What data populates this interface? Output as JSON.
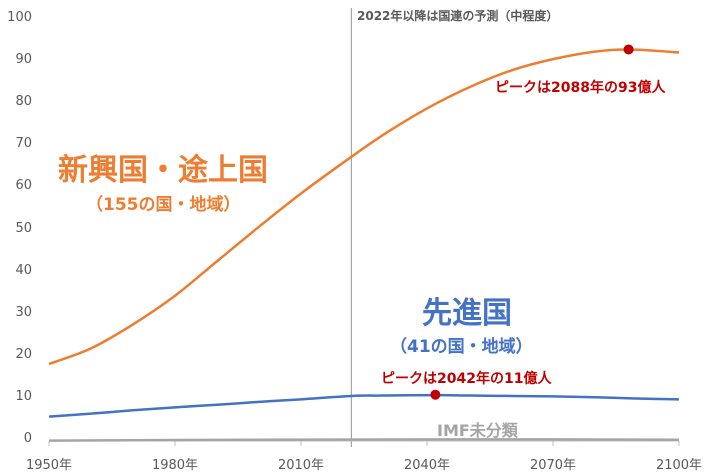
{
  "chart_data": {
    "type": "line",
    "title": "",
    "xlabel": "",
    "ylabel": "",
    "ylim": [
      0,
      100
    ],
    "xlim": [
      1950,
      2100
    ],
    "y_ticks": [
      "0",
      "10",
      "20",
      "30",
      "40",
      "50",
      "60",
      "70",
      "80",
      "90",
      "100"
    ],
    "x_ticks": [
      "1950年",
      "1980年",
      "2010年",
      "2040年",
      "2070年",
      "2100年"
    ],
    "grid": false,
    "projection_line": {
      "year": 2022,
      "label": "2022年以降は国連の予測（中程度）"
    },
    "series": [
      {
        "name": "新興国・途上国",
        "sublabel": "（155の国・地域）",
        "color": "#ED7D31",
        "x": [
          1950,
          1960,
          1970,
          1980,
          1990,
          2000,
          2010,
          2022,
          2030,
          2040,
          2050,
          2060,
          2070,
          2080,
          2088,
          2100
        ],
        "values": [
          18.3,
          22.0,
          27.7,
          34.5,
          42.7,
          50.9,
          58.8,
          67.5,
          73.0,
          79.0,
          84.0,
          88.0,
          90.7,
          92.5,
          93.0,
          92.3
        ],
        "peak": {
          "year": 2088,
          "value": 93,
          "label": "ピークは2088年の93億人"
        }
      },
      {
        "name": "先進国",
        "sublabel": "（41の国・地域）",
        "color": "#4472C4",
        "x": [
          1950,
          1960,
          1970,
          1980,
          1990,
          2000,
          2010,
          2022,
          2030,
          2042,
          2050,
          2060,
          2070,
          2080,
          2090,
          2100
        ],
        "values": [
          5.8,
          6.5,
          7.3,
          8.0,
          8.6,
          9.3,
          9.9,
          10.7,
          10.8,
          10.9,
          10.8,
          10.7,
          10.6,
          10.4,
          10.1,
          9.9
        ],
        "peak": {
          "year": 2042,
          "value": 11,
          "label": "ピークは2042年の11億人"
        }
      },
      {
        "name": "IMF未分類",
        "color": "#A5A5A5",
        "x": [
          1950,
          2000,
          2050,
          2100
        ],
        "values": [
          0.1,
          0.3,
          0.4,
          0.3
        ]
      }
    ]
  },
  "labels": {
    "emerging_title": "新興国・途上国",
    "emerging_sub": "（155の国・地域）",
    "developed_title": "先進国",
    "developed_sub": "（41の国・地域）",
    "unclassified": "IMF未分類",
    "projection_note": "2022年以降は国連の予測（中程度）",
    "emerging_peak": "ピークは2088年の93億人",
    "developed_peak": "ピークは2042年の11億人"
  },
  "colors": {
    "emerging": "#ED7D31",
    "developed": "#4472C4",
    "peak": "#C00000",
    "axis": "#A6A6A6",
    "unclassified": "#A5A5A5"
  }
}
